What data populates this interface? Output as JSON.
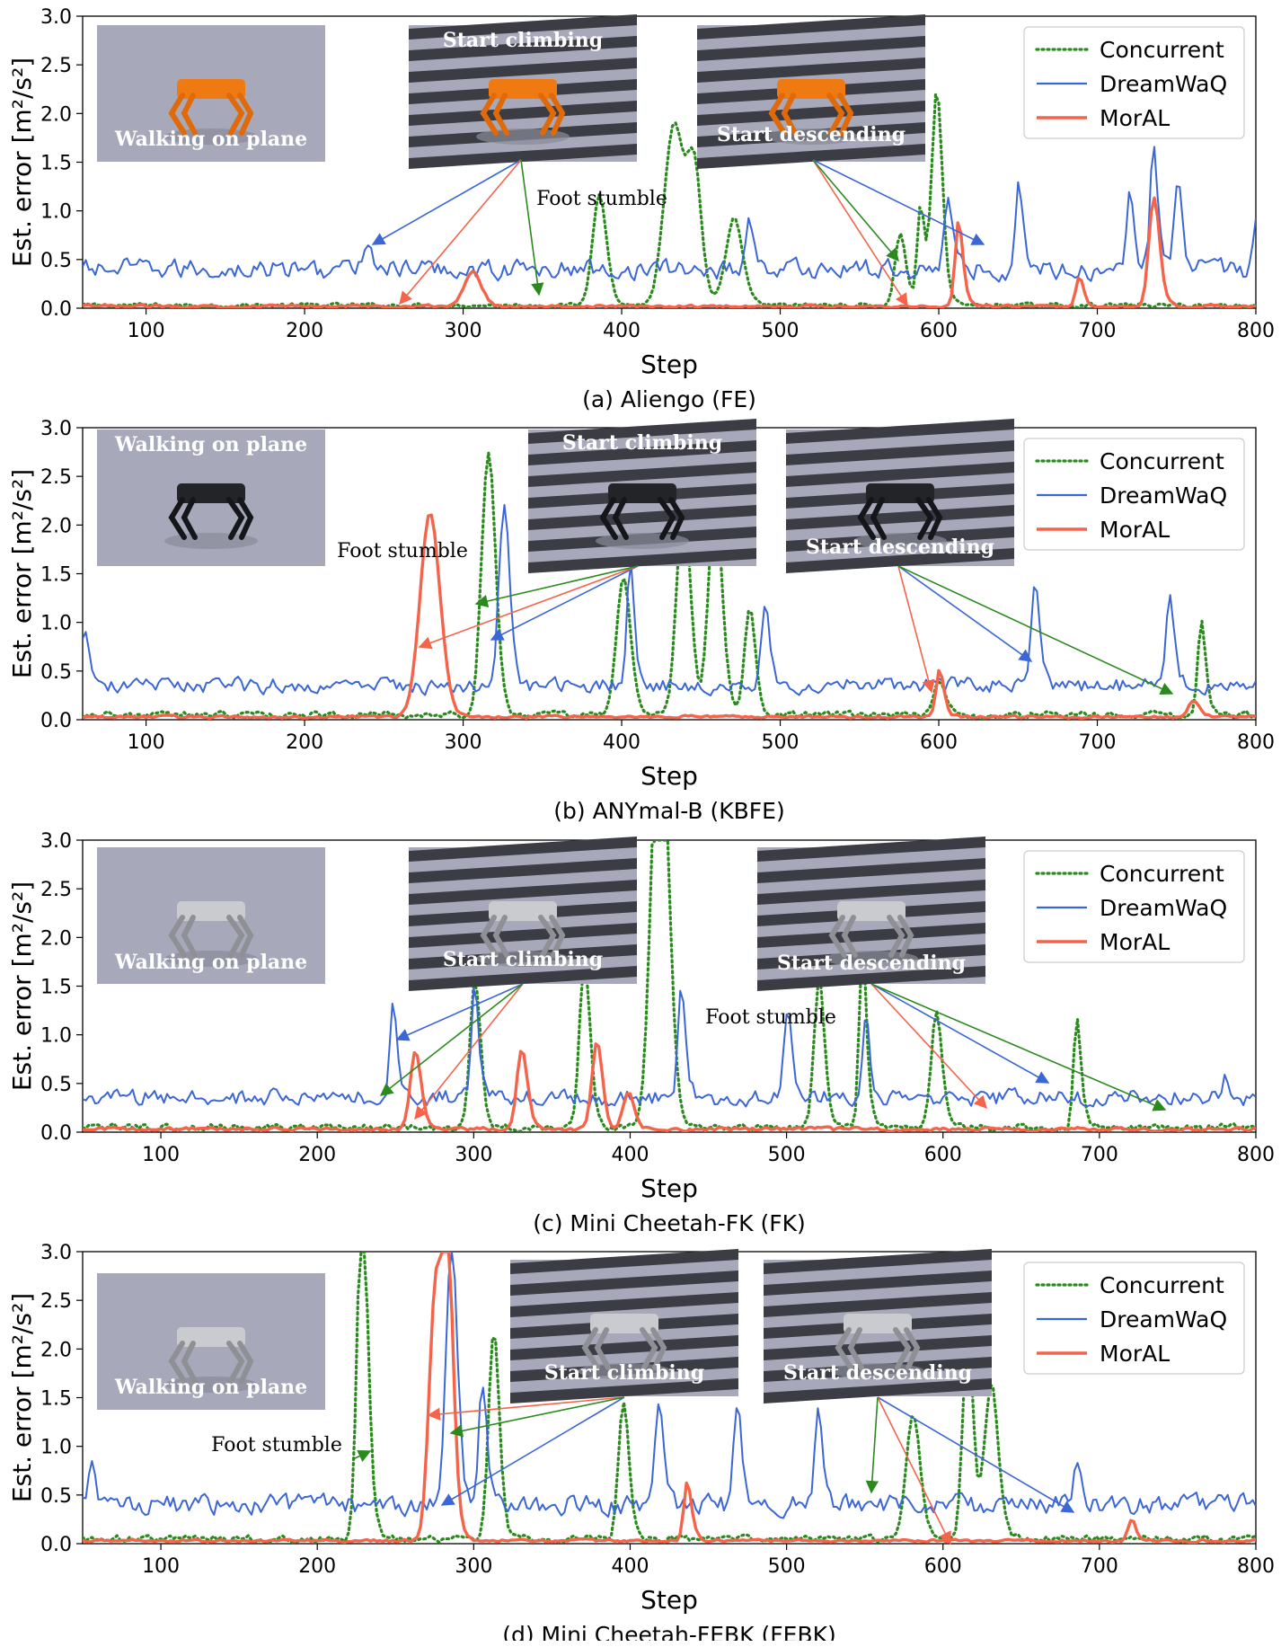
{
  "chart_data": [
    {
      "type": "line",
      "caption": "(a) Aliengo (FE)",
      "xlabel": "Step",
      "ylabel": "Est. error [m²/s²]",
      "xlim": [
        60,
        800
      ],
      "ylim": [
        0,
        3.0
      ],
      "xticks": [
        100,
        200,
        300,
        400,
        500,
        600,
        700,
        800
      ],
      "yticks": [
        0.0,
        0.5,
        1.0,
        1.5,
        2.0,
        2.5,
        3.0
      ],
      "legend_position": "top-right",
      "insets": [
        "Walking on plane",
        "Start climbing",
        "Start descending"
      ],
      "annotations": [
        "Foot stumble"
      ],
      "series": [
        {
          "name": "Concurrent",
          "color": "#2b8a1e",
          "style": "dotted",
          "base": 0.03,
          "noise": 0.03,
          "peaks": [
            [
              385,
              0.8,
              4
            ],
            [
              432,
              1.2,
              6
            ],
            [
              445,
              0.9,
              4
            ],
            [
              470,
              0.6,
              5
            ],
            [
              575,
              0.55,
              3
            ],
            [
              598,
              1.55,
              3
            ],
            [
              588,
              0.8,
              2
            ]
          ]
        },
        {
          "name": "DreamWaQ",
          "color": "#3b66d6",
          "style": "solid",
          "base": 0.4,
          "noise": 0.15,
          "peaks": [
            [
              240,
              0.65,
              2
            ],
            [
              480,
              0.85,
              2
            ],
            [
              605,
              1.0,
              2
            ],
            [
              650,
              1.05,
              2
            ],
            [
              720,
              1.1,
              2
            ],
            [
              735,
              1.35,
              2
            ],
            [
              750,
              1.1,
              2
            ],
            [
              800,
              0.85,
              2
            ]
          ]
        },
        {
          "name": "MorAL",
          "color": "#f4634a",
          "style": "solid",
          "base": 0.02,
          "noise": 0.02,
          "peaks": [
            [
              305,
              0.25,
              5
            ],
            [
              612,
              0.7,
              2
            ],
            [
              688,
              0.25,
              2
            ],
            [
              735,
              0.8,
              3
            ]
          ]
        }
      ]
    },
    {
      "type": "line",
      "caption": "(b) ANYmal-B (KBFE)",
      "xlabel": "Step",
      "ylabel": "Est. error [m²/s²]",
      "xlim": [
        60,
        800
      ],
      "ylim": [
        0,
        3.0
      ],
      "xticks": [
        100,
        200,
        300,
        400,
        500,
        600,
        700,
        800
      ],
      "yticks": [
        0.0,
        0.5,
        1.0,
        1.5,
        2.0,
        2.5,
        3.0
      ],
      "legend_position": "top-right",
      "insets": [
        "Walking on plane",
        "Start climbing",
        "Start descending"
      ],
      "annotations": [
        "Foot stumble"
      ],
      "series": [
        {
          "name": "Concurrent",
          "color": "#2b8a1e",
          "style": "dotted",
          "base": 0.05,
          "noise": 0.05,
          "peaks": [
            [
              315,
              1.85,
              4
            ],
            [
              400,
              1.0,
              4
            ],
            [
              438,
              1.5,
              4
            ],
            [
              458,
              1.5,
              4
            ],
            [
              480,
              0.8,
              3
            ],
            [
              600,
              0.3,
              3
            ],
            [
              765,
              0.8,
              2
            ]
          ]
        },
        {
          "name": "DreamWaQ",
          "color": "#3b66d6",
          "style": "solid",
          "base": 0.35,
          "noise": 0.12,
          "peaks": [
            [
              60,
              0.9,
              2
            ],
            [
              325,
              1.6,
              3
            ],
            [
              405,
              1.3,
              2
            ],
            [
              490,
              1.0,
              2
            ],
            [
              660,
              1.2,
              2
            ],
            [
              745,
              1.1,
              2
            ]
          ]
        },
        {
          "name": "MorAL",
          "color": "#f4634a",
          "style": "solid",
          "base": 0.03,
          "noise": 0.02,
          "peaks": [
            [
              278,
              1.35,
              6
            ],
            [
              600,
              0.4,
              2
            ],
            [
              760,
              0.15,
              3
            ]
          ]
        }
      ]
    },
    {
      "type": "line",
      "caption": "(c) Mini Cheetah-FK (FK)",
      "xlabel": "Step",
      "ylabel": "Est. error [m²/s²]",
      "xlim": [
        50,
        800
      ],
      "ylim": [
        0,
        3.0
      ],
      "xticks": [
        100,
        200,
        300,
        400,
        500,
        600,
        700,
        800
      ],
      "yticks": [
        0.0,
        0.5,
        1.0,
        1.5,
        2.0,
        2.5,
        3.0
      ],
      "legend_position": "top-right",
      "insets": [
        "Walking on plane",
        "Start climbing",
        "Start descending"
      ],
      "annotations": [
        "Foot stumble"
      ],
      "series": [
        {
          "name": "Concurrent",
          "color": "#2b8a1e",
          "style": "dotted",
          "base": 0.05,
          "noise": 0.05,
          "peaks": [
            [
              300,
              1.1,
              3
            ],
            [
              370,
              1.25,
              3
            ],
            [
              418,
              3.0,
              5
            ],
            [
              548,
              1.45,
              2
            ],
            [
              520,
              1.1,
              3
            ],
            [
              595,
              0.9,
              3
            ],
            [
              685,
              0.9,
              2
            ]
          ]
        },
        {
          "name": "DreamWaQ",
          "color": "#3b66d6",
          "style": "solid",
          "base": 0.35,
          "noise": 0.13,
          "peaks": [
            [
              248,
              1.05,
              2
            ],
            [
              300,
              1.2,
              2
            ],
            [
              432,
              1.2,
              2
            ],
            [
              500,
              1.05,
              2
            ],
            [
              550,
              1.0,
              2
            ],
            [
              780,
              0.5,
              2
            ]
          ]
        },
        {
          "name": "MorAL",
          "color": "#f4634a",
          "style": "solid",
          "base": 0.03,
          "noise": 0.03,
          "peaks": [
            [
              262,
              0.6,
              3
            ],
            [
              330,
              0.6,
              3
            ],
            [
              378,
              0.65,
              3
            ],
            [
              398,
              0.3,
              3
            ]
          ]
        }
      ]
    },
    {
      "type": "line",
      "caption": "(d) Mini Cheetah-FEBK (FEBK)",
      "xlabel": "Step",
      "ylabel": "Est. error [m²/s²]",
      "xlim": [
        50,
        800
      ],
      "ylim": [
        0,
        3.0
      ],
      "xticks": [
        100,
        200,
        300,
        400,
        500,
        600,
        700,
        800
      ],
      "yticks": [
        0.0,
        0.5,
        1.0,
        1.5,
        2.0,
        2.5,
        3.0
      ],
      "legend_position": "top-right",
      "insets": [
        "Walking on plane",
        "Start climbing",
        "Start descending"
      ],
      "annotations": [
        "Foot stumble"
      ],
      "series": [
        {
          "name": "Concurrent",
          "color": "#2b8a1e",
          "style": "dotted",
          "base": 0.05,
          "noise": 0.05,
          "peaks": [
            [
              228,
              2.55,
              3
            ],
            [
              312,
              1.55,
              3
            ],
            [
              395,
              1.0,
              3
            ],
            [
              615,
              1.5,
              3
            ],
            [
              630,
              1.1,
              4
            ],
            [
              580,
              0.9,
              4
            ]
          ]
        },
        {
          "name": "DreamWaQ",
          "color": "#3b66d6",
          "style": "solid",
          "base": 0.4,
          "noise": 0.15,
          "peaks": [
            [
              55,
              0.75,
              2
            ],
            [
              285,
              2.35,
              3
            ],
            [
              305,
              1.35,
              2
            ],
            [
              418,
              1.2,
              2
            ],
            [
              468,
              1.2,
              2
            ],
            [
              520,
              1.15,
              2
            ],
            [
              685,
              0.75,
              2
            ]
          ]
        },
        {
          "name": "MorAL",
          "color": "#f4634a",
          "style": "solid",
          "base": 0.03,
          "noise": 0.02,
          "peaks": [
            [
              275,
              1.8,
              4
            ],
            [
              283,
              1.8,
              3
            ],
            [
              436,
              0.5,
              2
            ],
            [
              720,
              0.2,
              2
            ]
          ]
        }
      ]
    }
  ]
}
